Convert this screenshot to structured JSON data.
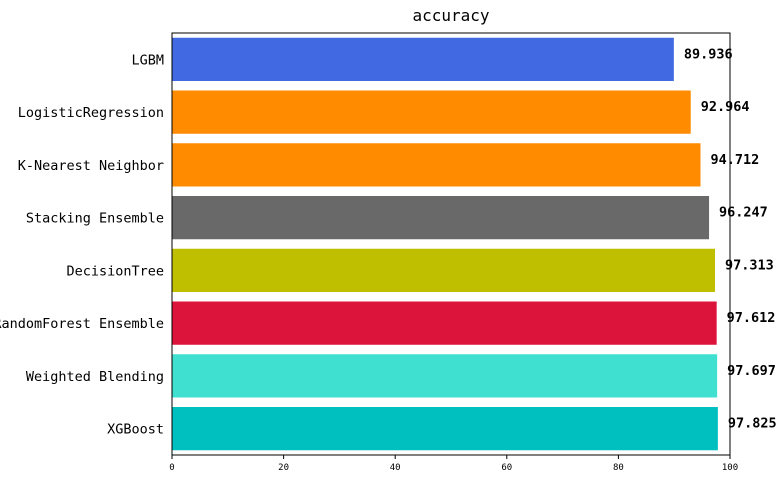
{
  "chart_data": {
    "type": "bar",
    "orientation": "horizontal",
    "title": "accuracy",
    "xlabel": "",
    "ylabel": "",
    "xlim": [
      0,
      100
    ],
    "xticks": [
      0,
      20,
      40,
      60,
      80,
      100
    ],
    "grid": false,
    "categories": [
      "LGBM",
      "LogisticRegression",
      "K-Nearest Neighbor",
      "Stacking Ensemble",
      "DecisionTree",
      "RandomForest Ensemble",
      "Weighted Blending",
      "XGBoost"
    ],
    "values": [
      89.936,
      92.964,
      94.712,
      96.247,
      97.313,
      97.612,
      97.697,
      97.825
    ],
    "value_labels": [
      "89.936",
      "92.964",
      "94.712",
      "96.247",
      "97.313",
      "97.612",
      "97.697",
      "97.825"
    ],
    "colors": [
      "#4169e1",
      "#ff8c00",
      "#ff8c00",
      "#696969",
      "#bfbf00",
      "#dc143c",
      "#40e0d0",
      "#00bfbf"
    ]
  }
}
